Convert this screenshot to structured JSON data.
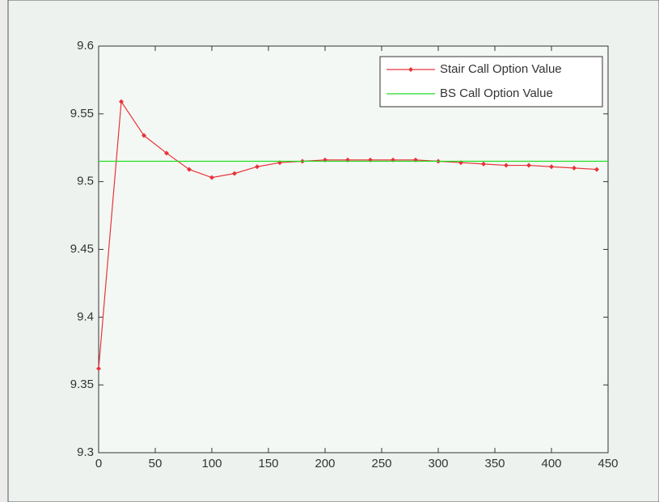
{
  "chart_data": {
    "type": "line",
    "series": [
      {
        "name": "Stair Call Option Value",
        "color": "#e8333a",
        "marker": "diamond",
        "x": [
          0,
          20,
          40,
          60,
          80,
          100,
          120,
          140,
          160,
          180,
          200,
          220,
          240,
          260,
          280,
          300,
          320,
          340,
          360,
          380,
          400,
          420,
          440
        ],
        "values": [
          9.362,
          9.559,
          9.534,
          9.521,
          9.509,
          9.503,
          9.506,
          9.511,
          9.514,
          9.515,
          9.516,
          9.516,
          9.516,
          9.516,
          9.516,
          9.515,
          9.514,
          9.513,
          9.512,
          9.512,
          9.511,
          9.51,
          9.509
        ]
      },
      {
        "name": "BS Call Option Value",
        "color": "#22dd22",
        "x": [
          0,
          450
        ],
        "values": [
          9.515,
          9.515
        ]
      }
    ],
    "xlim": [
      0,
      450
    ],
    "xticks": [
      0,
      50,
      100,
      150,
      200,
      250,
      300,
      350,
      400,
      450
    ],
    "ylim": [
      9.3,
      9.6
    ],
    "yticks": [
      9.3,
      9.35,
      9.4,
      9.45,
      9.5,
      9.55,
      9.6
    ],
    "legend": "top-right"
  }
}
